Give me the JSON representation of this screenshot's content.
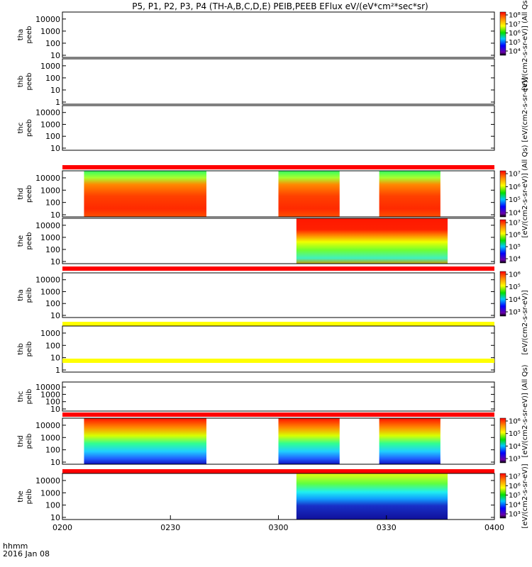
{
  "title": "P5, P1, P2, P3, P4 (TH-A,B,C,D,E) PEIB,PEEB EFlux eV/(eV*cm²*sec*sr)",
  "xaxis": {
    "label_line1": "hhmm",
    "label_line2": "2016 Jan 08",
    "ticks": [
      "0200",
      "0230",
      "0300",
      "0330",
      "0400"
    ]
  },
  "colorbar_labels": {
    "eflux_all_qs": "[eV/(cm2-s-sr-eV)] (All Qs)",
    "eflux": "[eV/(cm2-s-sr-eV)]"
  },
  "colorbars": [
    {
      "ticks": [
        "10⁴",
        "10⁵",
        "10⁶",
        "10⁷",
        "10⁸"
      ]
    },
    {
      "ticks": [
        "10⁴",
        "10⁵",
        "10⁶",
        "10⁷"
      ]
    },
    {
      "ticks": [
        "10⁴",
        "10⁵",
        "10⁶",
        "10⁷"
      ]
    },
    {
      "ticks": [
        "10³",
        "10⁴",
        "10⁵",
        "10⁶"
      ]
    },
    {
      "ticks": [
        "10³",
        "10⁴",
        "10⁵",
        "10⁶"
      ]
    },
    {
      "ticks": [
        "10³",
        "10⁴",
        "10⁵",
        "10⁶",
        "10⁷"
      ]
    }
  ],
  "chart_data": {
    "type": "heatmap",
    "title": "P5, P1, P2, P3, P4 (TH-A,B,C,D,E) PEIB,PEEB EFlux eV/(eV*cm²*sec*sr)",
    "x_range": [
      "0200",
      "0400"
    ],
    "colormap": "rainbow",
    "panels": [
      {
        "probe": "tha",
        "product": "peeb",
        "ylabels": [
          "tha",
          "peeb"
        ],
        "yticks": [
          "10",
          "100",
          "1000",
          "10000"
        ],
        "ylog": true,
        "data_intervals": [],
        "bands": []
      },
      {
        "probe": "thb",
        "product": "peeb",
        "ylabels": [
          "thb",
          "peeb"
        ],
        "yticks": [
          "1",
          "10",
          "100",
          "1000"
        ],
        "ylog": true,
        "data_intervals": [],
        "bands": []
      },
      {
        "probe": "thc",
        "product": "peeb",
        "ylabels": [
          "thc",
          "peeb"
        ],
        "yticks": [
          "10",
          "100",
          "1000",
          "10000"
        ],
        "ylog": true,
        "data_intervals": [],
        "bands": [
          {
            "color": "#ff0000",
            "position": "below"
          }
        ]
      },
      {
        "probe": "thd",
        "product": "peeb",
        "ylabels": [
          "thd",
          "peeb"
        ],
        "yticks": [
          "10",
          "100",
          "1000",
          "10000"
        ],
        "ylog": true,
        "data_intervals": [
          [
            "0206",
            "0240"
          ],
          [
            "0300",
            "0317"
          ],
          [
            "0328",
            "0345"
          ]
        ],
        "bands": []
      },
      {
        "probe": "the",
        "product": "peeb",
        "ylabels": [
          "the",
          "peeb"
        ],
        "yticks": [
          "10",
          "100",
          "1000",
          "10000"
        ],
        "ylog": true,
        "data_intervals": [
          [
            "0305",
            "0347"
          ]
        ],
        "bands": [
          {
            "color": "#ff0000",
            "position": "below"
          }
        ]
      },
      {
        "probe": "tha",
        "product": "peib",
        "ylabels": [
          "tha",
          "peib"
        ],
        "yticks": [
          "10",
          "100",
          "1000",
          "10000"
        ],
        "ylog": true,
        "data_intervals": [],
        "bands": [
          {
            "color": "#ffff00",
            "position": "below"
          }
        ]
      },
      {
        "probe": "thb",
        "product": "peib",
        "ylabels": [
          "thb",
          "peib"
        ],
        "yticks": [
          "1",
          "10",
          "100",
          "1000"
        ],
        "ylog": true,
        "data_intervals": [],
        "bands": [
          {
            "color": "#ffff00",
            "position": "below"
          }
        ]
      },
      {
        "probe": "thc",
        "product": "peib",
        "ylabels": [
          "thc",
          "peib"
        ],
        "yticks": [
          "10",
          "100",
          "1000",
          "10000"
        ],
        "ylog": true,
        "data_intervals": [],
        "bands": [
          {
            "color": "#ff0000",
            "position": "below"
          }
        ]
      },
      {
        "probe": "thd",
        "product": "peib",
        "ylabels": [
          "thd",
          "peib"
        ],
        "yticks": [
          "10",
          "100",
          "1000",
          "10000"
        ],
        "ylog": true,
        "data_intervals": [
          [
            "0206",
            "0240"
          ],
          [
            "0300",
            "0317"
          ],
          [
            "0328",
            "0345"
          ]
        ],
        "bands": [
          {
            "color": "#ff0000",
            "position": "below"
          }
        ]
      },
      {
        "probe": "the",
        "product": "peib",
        "ylabels": [
          "the",
          "peib"
        ],
        "yticks": [
          "10",
          "100",
          "1000",
          "10000"
        ],
        "ylog": true,
        "data_intervals": [
          [
            "0305",
            "0347"
          ]
        ],
        "bands": []
      }
    ]
  }
}
